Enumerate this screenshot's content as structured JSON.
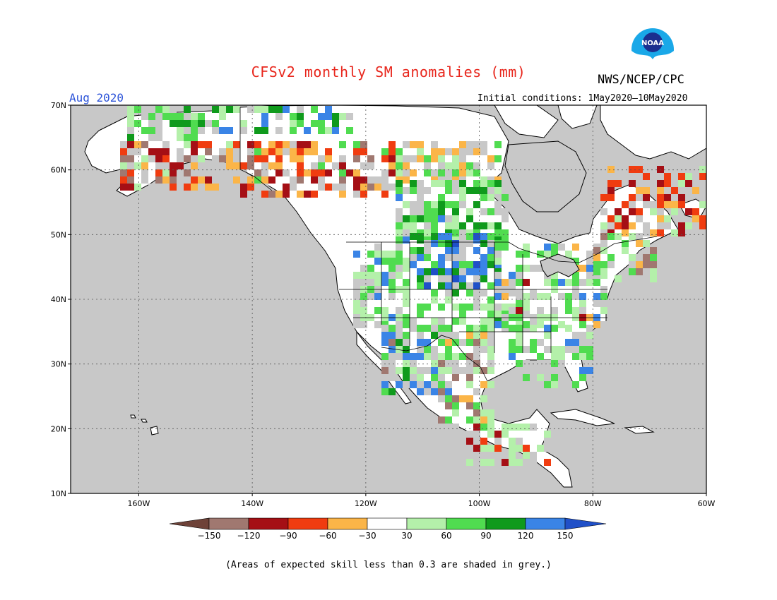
{
  "header": {
    "title": "CFSv2 monthly SM anomalies (mm)",
    "agency": "NWS/NCEP/CPC",
    "month": "Aug 2020",
    "initial_conditions": "Initial conditions: 1May2020–10May2020",
    "logo_text": "NOAA"
  },
  "map": {
    "lat_labels": [
      "70N",
      "60N",
      "50N",
      "40N",
      "30N",
      "20N",
      "10N"
    ],
    "lon_labels": [
      "160W",
      "140W",
      "120W",
      "100W",
      "80W",
      "60W"
    ],
    "ocean_color": "#c8c8c8",
    "no_anomaly_color": "#ffffff"
  },
  "legend": {
    "ticks": [
      "−150",
      "−120",
      "−90",
      "−60",
      "−30",
      "30",
      "60",
      "90",
      "120",
      "150"
    ],
    "colors": [
      "#6e4238",
      "#a07870",
      "#a50f15",
      "#f03c10",
      "#fbb548",
      "#ffffff",
      "#b4f0aa",
      "#50dc50",
      "#0f9a1c",
      "#3a84e6",
      "#2050c8"
    ]
  },
  "footnote": "(Areas of expected skill less than 0.3 are shaded in grey.)"
}
